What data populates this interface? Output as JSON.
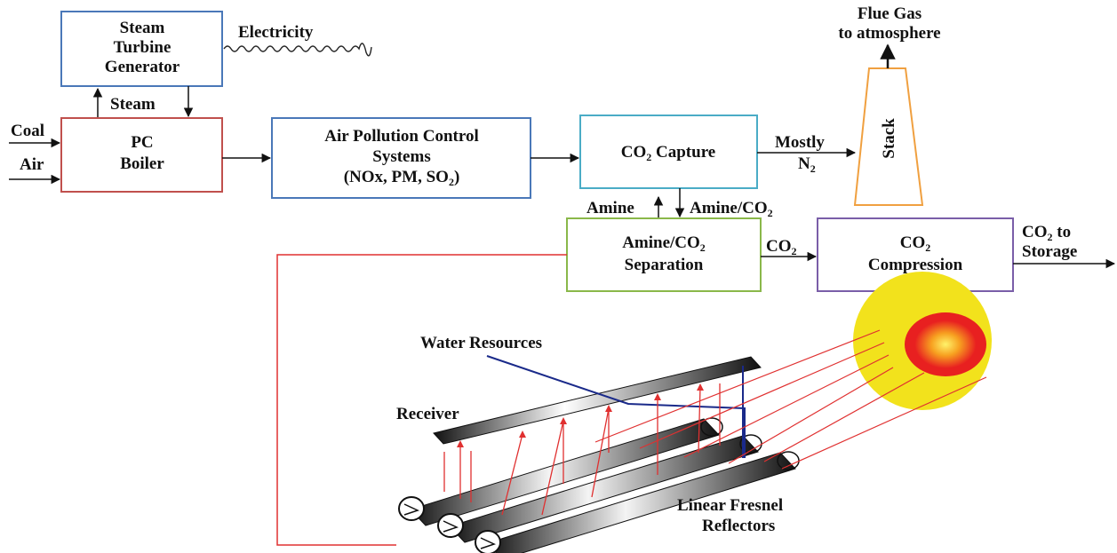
{
  "steam_turbine": {
    "line1": "Steam",
    "line2": "Turbine",
    "line3": "Generator"
  },
  "electricity": "Electricity",
  "steam": "Steam",
  "coal": "Coal",
  "air": "Air",
  "pc_boiler": {
    "line1": "PC",
    "line2": "Boiler"
  },
  "apc": {
    "line1": "Air Pollution Control",
    "line2": "Systems",
    "line3_pre": "(NOx, PM, SO",
    "line3_sub": "2",
    "line3_post": ")"
  },
  "co2_capture": {
    "pre": "CO",
    "sub": "2",
    "post": " Capture"
  },
  "mostly": "Mostly",
  "n2": {
    "pre": "N",
    "sub": "2"
  },
  "stack": "Stack",
  "flue_gas": {
    "line1": "Flue Gas",
    "line2": "to atmosphere"
  },
  "amine_out": "Amine",
  "amine_co2_in": {
    "pre": "Amine/CO",
    "sub": "2"
  },
  "separation": {
    "line1_pre": "Amine/CO",
    "line1_sub": "2",
    "line2": "Separation"
  },
  "co2_flow": {
    "pre": "CO",
    "sub": "2"
  },
  "compression": {
    "line1_pre": "CO",
    "line1_sub": "2",
    "line2": "Compression"
  },
  "storage": {
    "line1_pre": "CO",
    "line1_sub": "2",
    "line1_post": " to",
    "line2": "Storage"
  },
  "water_resources": "Water Resources",
  "receiver": "Receiver",
  "fresnel": {
    "line1": "Linear Fresnel",
    "line2": "Reflectors"
  },
  "colors": {
    "turbine_box": "#4a78b8",
    "boiler_box": "#c0504d",
    "apc_box": "#4a78b8",
    "capture_box": "#4aacc6",
    "separation_box": "#8ab84a",
    "compression_box": "#7a5ea8",
    "stack": "#f0a040",
    "solar_loop": "#e03030",
    "water_line": "#1a2a8a",
    "sun_outer": "#f2e21c",
    "sun_core": "#e82020"
  }
}
